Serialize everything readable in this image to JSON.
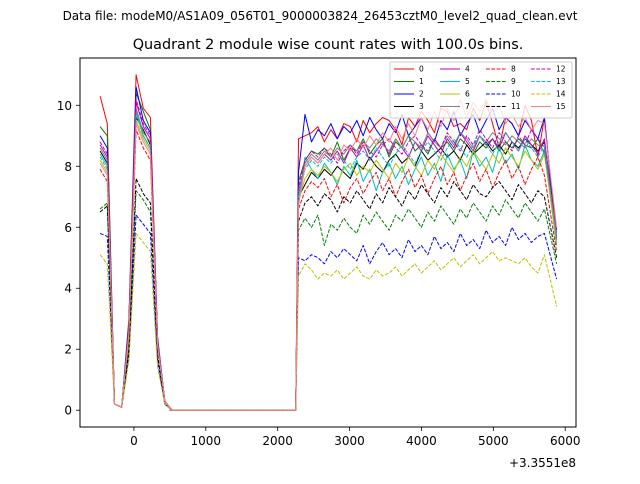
{
  "figure": {
    "suptitle": "Data file: modeM0/AS1A09_056T01_9000003824_26453cztM0_level2_quad_clean.evt",
    "offset_label": "+3.3551e8"
  },
  "chart_data": {
    "type": "line",
    "title": "Quadrant 2 module wise count rates with 100.0s bins.",
    "xlabel": "",
    "ylabel": "",
    "xlim": [
      -750,
      6150
    ],
    "ylim": [
      -0.55,
      11.55
    ],
    "x_offset": 335510000,
    "x_ticks": [
      0,
      1000,
      2000,
      3000,
      4000,
      5000,
      6000
    ],
    "y_ticks": [
      0,
      2,
      4,
      6,
      8,
      10
    ],
    "grid": false,
    "legend_placement": "top-right",
    "series": [
      {
        "name": "0",
        "color": "#ff0000",
        "dashed": false,
        "pre": [
          10.3,
          9.4,
          0.2,
          0.1,
          3.0,
          11.0,
          9.9,
          9.6,
          2.4,
          0.3,
          0.0
        ],
        "post_start": 8.9,
        "post": [
          9.0,
          9.1,
          9.3,
          8.8,
          9.2,
          8.9,
          9.4,
          9.3,
          8.8,
          9.5,
          9.1,
          9.4,
          9.6,
          9.5,
          9.2,
          8.7,
          9.6,
          9.3,
          9.8,
          9.5,
          9.1,
          9.9,
          9.8,
          9.3,
          9.4,
          9.2,
          9.9,
          9.5,
          10.1,
          9.4,
          8.6,
          9.6,
          9.4,
          9.0,
          10.0,
          9.5,
          8.3,
          9.6
        ],
        "end": 5.6
      },
      {
        "name": "1",
        "color": "#008000",
        "dashed": false,
        "pre": [
          9.3,
          9.0,
          0.2,
          0.1,
          2.9,
          10.4,
          9.8,
          9.2,
          2.3,
          0.3,
          0.0
        ],
        "post_start": 7.5,
        "post": [
          8.2,
          8.5,
          8.4,
          8.6,
          8.3,
          8.8,
          8.2,
          8.6,
          8.5,
          8.9,
          8.4,
          8.7,
          8.9,
          8.3,
          8.8,
          8.6,
          9.0,
          8.5,
          8.7,
          8.4,
          8.9,
          8.6,
          8.8,
          8.5,
          8.9,
          8.7,
          8.4,
          8.8,
          8.6,
          8.9,
          8.5,
          8.8,
          8.6,
          8.9,
          8.7,
          8.6,
          8.9,
          8.4
        ],
        "end": 5.8
      },
      {
        "name": "2",
        "color": "#0000ff",
        "dashed": false,
        "pre": [
          9.0,
          8.6,
          0.2,
          0.1,
          2.8,
          10.6,
          9.5,
          9.1,
          2.3,
          0.3,
          0.0
        ],
        "post_start": 7.8,
        "post": [
          9.7,
          8.8,
          9.2,
          9.0,
          9.4,
          8.9,
          9.3,
          9.1,
          9.5,
          9.0,
          9.6,
          9.2,
          8.9,
          9.4,
          9.1,
          9.7,
          9.0,
          9.3,
          9.6,
          9.1,
          8.8,
          9.5,
          9.2,
          9.8,
          9.0,
          9.4,
          9.7,
          9.1,
          9.5,
          9.9,
          9.2,
          9.6,
          9.4,
          9.0,
          9.5,
          9.2,
          8.9,
          9.6
        ],
        "end": 5.5
      },
      {
        "name": "3",
        "color": "#000000",
        "dashed": false,
        "pre": [
          8.5,
          8.1,
          0.2,
          0.1,
          2.6,
          9.6,
          9.2,
          8.7,
          2.2,
          0.3,
          0.0
        ],
        "post_start": 7.0,
        "post": [
          7.4,
          7.8,
          7.6,
          7.9,
          7.7,
          8.0,
          7.8,
          7.6,
          8.1,
          7.9,
          8.3,
          8.0,
          7.8,
          8.2,
          8.4,
          8.1,
          8.3,
          8.0,
          8.5,
          8.2,
          8.4,
          8.6,
          8.3,
          8.5,
          8.2,
          8.7,
          8.4,
          8.6,
          8.8,
          8.5,
          8.7,
          8.4,
          8.8,
          8.6,
          8.9,
          8.7,
          8.5,
          8.8
        ],
        "end": 5.9
      },
      {
        "name": "4",
        "color": "#bf00bf",
        "dashed": false,
        "pre": [
          8.7,
          8.3,
          0.2,
          0.1,
          2.7,
          10.1,
          9.3,
          8.9,
          2.2,
          0.3,
          0.0
        ],
        "post_start": 7.2,
        "post": [
          8.0,
          8.3,
          8.1,
          8.4,
          8.2,
          8.5,
          8.1,
          8.6,
          8.3,
          8.7,
          8.2,
          8.5,
          8.8,
          8.4,
          8.9,
          8.6,
          8.3,
          8.8,
          8.5,
          9.0,
          8.7,
          8.4,
          8.9,
          8.6,
          9.1,
          8.8,
          8.5,
          9.0,
          8.7,
          8.9,
          8.6,
          9.1,
          8.8,
          8.5,
          9.0,
          8.7,
          8.4,
          8.9
        ],
        "end": 5.7
      },
      {
        "name": "5",
        "color": "#00bfbf",
        "dashed": false,
        "pre": [
          8.4,
          8.0,
          0.2,
          0.1,
          2.6,
          9.8,
          9.0,
          8.6,
          2.2,
          0.3,
          0.0
        ],
        "post_start": 6.8,
        "post": [
          8.3,
          7.9,
          7.6,
          8.1,
          7.8,
          7.4,
          8.0,
          7.7,
          8.2,
          7.5,
          7.9,
          7.2,
          7.8,
          8.1,
          7.6,
          8.0,
          7.4,
          7.9,
          8.3,
          7.7,
          8.1,
          7.5,
          8.4,
          7.9,
          8.2,
          7.6,
          8.5,
          8.0,
          8.3,
          7.8,
          8.6,
          8.1,
          8.4,
          7.9,
          8.7,
          8.2,
          8.0,
          8.5
        ],
        "end": 5.4
      },
      {
        "name": "6",
        "color": "#bfbf00",
        "dashed": false,
        "pre": [
          8.2,
          7.8,
          0.2,
          0.1,
          2.5,
          9.5,
          8.9,
          8.5,
          2.1,
          0.3,
          0.0
        ],
        "post_start": 6.9,
        "post": [
          7.6,
          7.9,
          7.7,
          8.0,
          7.8,
          7.5,
          7.9,
          8.1,
          7.7,
          8.0,
          7.8,
          8.2,
          7.9,
          7.6,
          8.1,
          7.8,
          8.3,
          8.0,
          7.7,
          8.2,
          7.9,
          8.4,
          8.1,
          7.8,
          8.3,
          8.0,
          8.5,
          8.2,
          7.9,
          8.4,
          8.1,
          8.6,
          8.3,
          8.0,
          8.5,
          8.2,
          7.9,
          8.4
        ],
        "end": 5.5
      },
      {
        "name": "7",
        "color": "#808080",
        "dashed": false,
        "pre": [
          8.6,
          8.2,
          0.2,
          0.1,
          2.6,
          9.9,
          9.1,
          8.8,
          2.2,
          0.3,
          0.0
        ],
        "post_start": 7.1,
        "post": [
          8.1,
          8.4,
          8.2,
          8.5,
          8.3,
          8.6,
          8.4,
          8.7,
          8.5,
          8.8,
          8.6,
          8.9,
          8.7,
          8.5,
          8.9,
          8.6,
          9.0,
          8.8,
          8.6,
          9.1,
          8.8,
          8.6,
          9.0,
          8.7,
          9.1,
          8.9,
          8.6,
          9.0,
          8.8,
          9.1,
          8.9,
          8.7,
          9.0,
          8.8,
          8.6,
          8.9,
          8.7,
          8.5
        ],
        "end": 5.8
      },
      {
        "name": "8",
        "color": "#ff0000",
        "dashed": true,
        "pre": [
          7.9,
          7.5,
          0.2,
          0.1,
          2.4,
          9.2,
          8.6,
          8.2,
          2.1,
          0.3,
          0.0
        ],
        "post_start": 6.6,
        "post": [
          7.2,
          7.5,
          7.3,
          7.6,
          7.0,
          7.4,
          6.8,
          7.3,
          7.6,
          7.1,
          7.5,
          7.8,
          7.2,
          7.6,
          7.0,
          7.5,
          7.9,
          7.3,
          7.7,
          7.1,
          7.6,
          8.0,
          7.4,
          7.8,
          7.2,
          7.7,
          8.1,
          7.5,
          7.9,
          7.3,
          7.8,
          8.2,
          7.6,
          8.0,
          7.4,
          7.9,
          8.3,
          7.7
        ],
        "end": 5.2
      },
      {
        "name": "9",
        "color": "#008000",
        "dashed": true,
        "pre": [
          6.6,
          6.8,
          0.2,
          0.1,
          2.0,
          7.2,
          6.9,
          6.5,
          1.8,
          0.2,
          0.0
        ],
        "post_start": 5.9,
        "post": [
          6.3,
          6.0,
          6.4,
          5.4,
          6.1,
          5.9,
          6.3,
          6.0,
          5.8,
          6.4,
          6.1,
          6.5,
          6.2,
          5.9,
          6.4,
          6.2,
          6.6,
          6.3,
          6.0,
          6.5,
          6.2,
          6.7,
          6.4,
          6.1,
          6.6,
          6.3,
          6.8,
          6.5,
          6.2,
          6.7,
          6.4,
          6.9,
          6.6,
          6.3,
          6.8,
          6.5,
          6.2,
          6.6
        ],
        "end": 4.8
      },
      {
        "name": "10",
        "color": "#0000ff",
        "dashed": true,
        "pre": [
          5.8,
          5.7,
          0.2,
          0.1,
          1.8,
          6.4,
          6.1,
          5.8,
          1.6,
          0.2,
          0.0
        ],
        "post_start": 5.0,
        "post": [
          4.9,
          5.1,
          5.0,
          4.8,
          5.2,
          5.0,
          5.3,
          5.1,
          4.9,
          5.4,
          4.8,
          5.2,
          5.5,
          5.1,
          5.3,
          5.0,
          5.6,
          5.2,
          5.4,
          5.1,
          5.7,
          5.3,
          5.5,
          5.2,
          5.8,
          5.4,
          5.6,
          5.3,
          5.9,
          5.5,
          5.7,
          5.4,
          6.0,
          5.6,
          5.8,
          5.5,
          5.7,
          5.8
        ],
        "end": 4.3
      },
      {
        "name": "11",
        "color": "#000000",
        "dashed": true,
        "pre": [
          6.5,
          6.7,
          0.2,
          0.1,
          2.0,
          7.6,
          7.1,
          6.8,
          1.8,
          0.2,
          0.0
        ],
        "post_start": 6.2,
        "post": [
          6.8,
          7.0,
          6.7,
          7.1,
          6.9,
          6.5,
          7.0,
          6.8,
          7.2,
          6.9,
          6.6,
          7.1,
          6.8,
          7.3,
          7.0,
          6.7,
          7.2,
          6.9,
          7.4,
          7.1,
          6.8,
          7.3,
          7.0,
          7.5,
          7.2,
          6.9,
          7.4,
          7.1,
          7.0,
          7.3,
          7.5,
          7.2,
          6.9,
          7.4,
          7.1,
          6.8,
          7.2,
          7.0
        ],
        "end": 5.0
      },
      {
        "name": "12",
        "color": "#bf00bf",
        "dashed": true,
        "pre": [
          8.8,
          8.4,
          0.2,
          0.1,
          2.7,
          10.2,
          9.4,
          9.0,
          2.3,
          0.3,
          0.0
        ],
        "post_start": 7.3,
        "post": [
          8.2,
          8.5,
          8.3,
          8.6,
          8.4,
          8.1,
          8.5,
          8.7,
          8.4,
          8.8,
          8.5,
          8.3,
          8.7,
          8.9,
          8.6,
          8.4,
          8.8,
          9.0,
          8.7,
          8.5,
          8.9,
          8.6,
          9.1,
          8.8,
          8.5,
          9.0,
          8.7,
          9.2,
          8.9,
          8.6,
          9.1,
          8.8,
          8.5,
          9.0,
          8.7,
          9.2,
          8.9,
          8.6
        ],
        "end": 5.9
      },
      {
        "name": "13",
        "color": "#00bfbf",
        "dashed": true,
        "pre": [
          8.3,
          7.9,
          0.2,
          0.1,
          2.5,
          9.7,
          9.0,
          8.6,
          2.2,
          0.3,
          0.0
        ],
        "post_start": 7.0,
        "post": [
          7.9,
          8.2,
          8.0,
          8.3,
          8.1,
          8.4,
          8.2,
          7.9,
          8.3,
          8.5,
          8.2,
          8.6,
          8.3,
          8.0,
          8.4,
          8.7,
          8.4,
          8.1,
          8.5,
          8.8,
          8.5,
          8.2,
          8.6,
          8.9,
          8.6,
          8.3,
          8.7,
          9.0,
          8.7,
          8.4,
          8.8,
          9.1,
          8.8,
          8.5,
          8.9,
          8.6,
          8.3,
          8.7
        ],
        "end": 5.6
      },
      {
        "name": "14",
        "color": "#bfbf00",
        "dashed": true,
        "pre": [
          5.1,
          4.8,
          0.2,
          0.1,
          1.6,
          5.8,
          5.5,
          5.2,
          1.4,
          0.2,
          0.0
        ],
        "post_start": 4.4,
        "post": [
          4.8,
          4.6,
          4.3,
          4.5,
          4.4,
          4.6,
          4.3,
          4.5,
          4.7,
          4.4,
          4.3,
          4.6,
          4.4,
          4.5,
          4.7,
          4.4,
          4.6,
          4.8,
          4.5,
          4.7,
          4.9,
          4.6,
          4.8,
          5.0,
          4.7,
          4.9,
          5.1,
          4.8,
          5.0,
          5.2,
          4.9,
          5.0,
          4.9,
          4.8,
          5.0,
          4.7,
          4.5,
          5.1
        ],
        "end": 3.4
      },
      {
        "name": "15",
        "color": "#ff8080",
        "dashed": false,
        "pre": [
          8.1,
          7.7,
          0.2,
          0.1,
          2.5,
          9.4,
          8.8,
          8.4,
          2.1,
          0.3,
          0.0
        ],
        "post_start": 6.7,
        "post": [
          8.0,
          8.3,
          8.1,
          8.4,
          8.6,
          8.2,
          8.7,
          8.5,
          8.9,
          8.6,
          9.0,
          8.7,
          9.1,
          8.8,
          9.3,
          8.9,
          9.4,
          9.0,
          9.6,
          9.2,
          9.8,
          9.3,
          9.9,
          9.5,
          10.2,
          9.6,
          10.1,
          9.8,
          10.2,
          9.7,
          10.0,
          9.4,
          9.7,
          9.3,
          9.6,
          9.2,
          9.5,
          9.4
        ],
        "end": 6.0
      }
    ]
  }
}
